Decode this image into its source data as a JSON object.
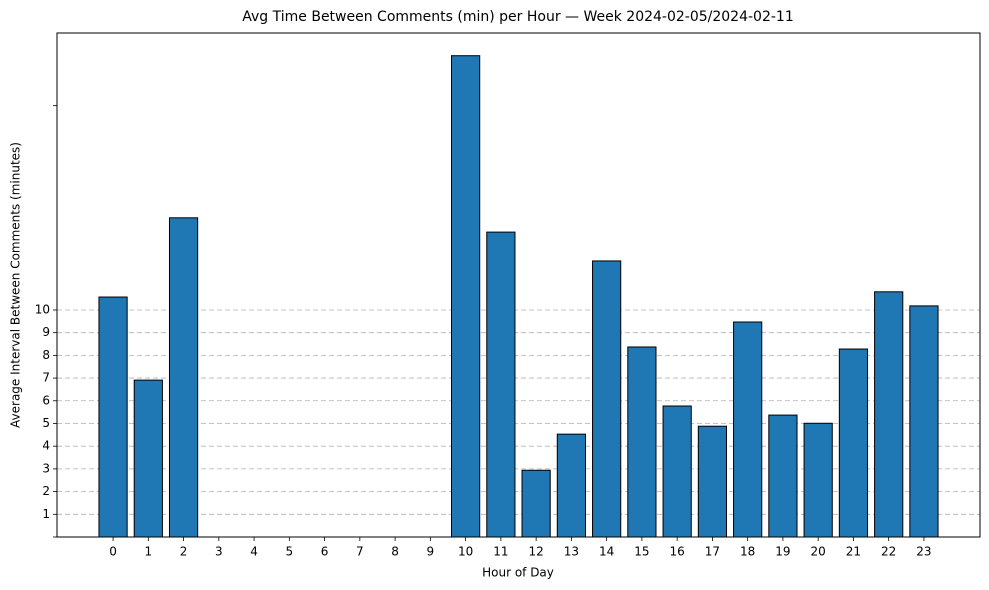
{
  "chart_data": {
    "type": "bar",
    "title": "Avg Time Between Comments (min) per Hour — Week 2024-02-05/2024-02-11",
    "xlabel": "Hour of Day",
    "ylabel": "Average Interval Between Comments (minutes)",
    "categories": [
      "0",
      "1",
      "2",
      "3",
      "4",
      "5",
      "6",
      "7",
      "8",
      "9",
      "10",
      "11",
      "12",
      "13",
      "14",
      "15",
      "16",
      "17",
      "18",
      "19",
      "20",
      "21",
      "22",
      "23"
    ],
    "values": [
      10.57,
      6.91,
      14.06,
      0,
      0,
      0,
      0,
      0,
      0,
      0,
      21.2,
      13.43,
      2.94,
      4.53,
      12.16,
      8.37,
      5.77,
      4.88,
      9.47,
      5.37,
      5.01,
      8.28,
      10.8,
      10.18
    ],
    "color": "#1f77b4",
    "ylim": [
      0,
      22.2
    ],
    "yticks": [
      1,
      2,
      3,
      4,
      5,
      6,
      7,
      8,
      9,
      10
    ],
    "minor_yticks": [
      0,
      19
    ],
    "grid": true
  }
}
